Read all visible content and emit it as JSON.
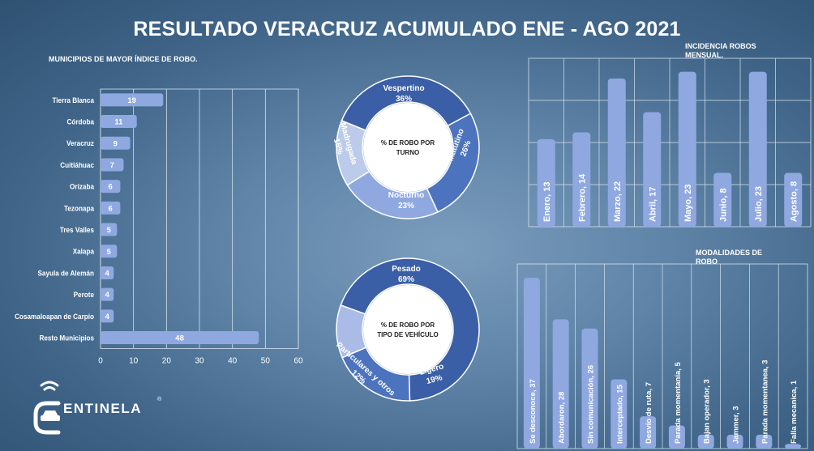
{
  "title": "RESULTADO VERACRUZ ACUMULADO ENE - AGO 2021",
  "brand": {
    "name": "ENTINELA",
    "mark": "C",
    "registered": "®",
    "icon": "car-wifi-icon"
  },
  "colors": {
    "bar": "#8fa8e0",
    "bar_dark": "#3a5fa6",
    "bar_mid": "#4c73bd"
  },
  "chart_data": [
    {
      "id": "municipios",
      "type": "bar",
      "orientation": "horizontal",
      "title": "MUNICIPIOS DE MAYOR ÍNDICE DE ROBO.",
      "categories": [
        "Tierra Blanca",
        "Córdoba",
        "Veracruz",
        "Cuitláhuac",
        "Orizaba",
        "Tezonapa",
        "Tres Valles",
        "Xalapa",
        "Sayula de Alemán",
        "Perote",
        "Cosamaloapan de Carpio",
        "Resto Municipios"
      ],
      "values": [
        19,
        11,
        9,
        7,
        6,
        6,
        5,
        5,
        4,
        4,
        4,
        48
      ],
      "xlim": [
        0,
        60
      ],
      "ticks": [
        0,
        10,
        20,
        30,
        40,
        50,
        60
      ],
      "grid": true
    },
    {
      "id": "turno",
      "type": "pie",
      "center_label": "% DE ROBO POR TURNO",
      "labels": [
        "Vespertino",
        "Matutino",
        "Nocturno",
        "Madrugada"
      ],
      "values": [
        36,
        26,
        23,
        15
      ],
      "value_labels": [
        "36%",
        "26%",
        "23%",
        "15%"
      ],
      "colors": [
        "#3a5fa6",
        "#4c73bd",
        "#8fa8e0",
        "#bccbe9"
      ]
    },
    {
      "id": "vehiculo",
      "type": "pie",
      "center_label": "% DE ROBO POR TIPO DE VEHÍCULO",
      "labels": [
        "Pesado",
        "Ligero",
        "Particulares y otros"
      ],
      "values": [
        69,
        19,
        12
      ],
      "value_labels": [
        "69%",
        "19%",
        "12%"
      ],
      "colors": [
        "#3a5fa6",
        "#4c73bd",
        "#a9bbe6"
      ]
    },
    {
      "id": "mensual",
      "type": "bar",
      "title": "INCIDENCIA ROBOS MENSUAL.",
      "categories": [
        "Enero",
        "Febrero",
        "Marzo",
        "Abril",
        "Mayo",
        "Junio",
        "Julio",
        "Agosto"
      ],
      "values": [
        13,
        14,
        22,
        17,
        23,
        8,
        23,
        8
      ],
      "labels": [
        "Enero, 13",
        "Febrero, 14",
        "Marzo, 22",
        "Abril, 17",
        "Mayo, 23",
        "Junio, 8",
        "Julio, 23",
        "Agosto, 8"
      ],
      "ylim": [
        0,
        25
      ],
      "grid": true
    },
    {
      "id": "modalidades",
      "type": "bar",
      "title": "MODALIDADES DE ROBO",
      "categories": [
        "Se desconoce",
        "Abordaron",
        "Sin comunicación",
        "Interceptado",
        "Desvío de ruta",
        "Parada momentanía",
        "Bajan operador",
        "Jammer",
        "Parada momentanea",
        "Falla mecanica"
      ],
      "values": [
        37,
        28,
        26,
        15,
        7,
        5,
        3,
        3,
        3,
        1
      ],
      "labels": [
        "Se desconoce, 37",
        "Abordaron, 28",
        "Sin comunicación, 26",
        "Interceptado, 15",
        "Desvío de ruta, 7",
        "Parada momentanía, 5",
        "Bajan operador, 3",
        "Jammer, 3",
        "Parada momentanea, 3",
        "Falla mecanica, 1"
      ],
      "ylim": [
        0,
        40
      ],
      "grid": true
    }
  ]
}
